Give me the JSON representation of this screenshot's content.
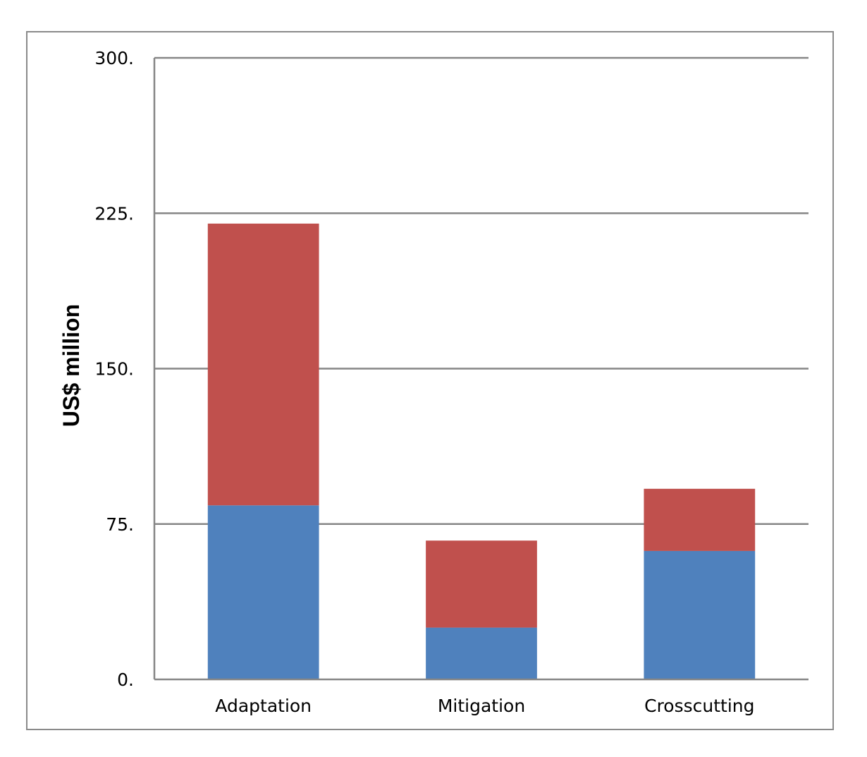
{
  "chart_data": {
    "type": "bar",
    "stacked": true,
    "title": "",
    "xlabel": "",
    "ylabel": "US$ million",
    "ylim": [
      0,
      300
    ],
    "yticks": [
      "0.",
      "75.",
      "150.",
      "225.",
      "300."
    ],
    "ytick_values": [
      0,
      75,
      150,
      225,
      300
    ],
    "grid": true,
    "legend": "none",
    "categories": [
      "Adaptation",
      "Mitigation",
      "Crosscutting"
    ],
    "series": [
      {
        "values": [
          84,
          25,
          62
        ],
        "color": "#4f81bd"
      },
      {
        "values": [
          136,
          42,
          30
        ],
        "color": "#c0504d"
      }
    ]
  }
}
